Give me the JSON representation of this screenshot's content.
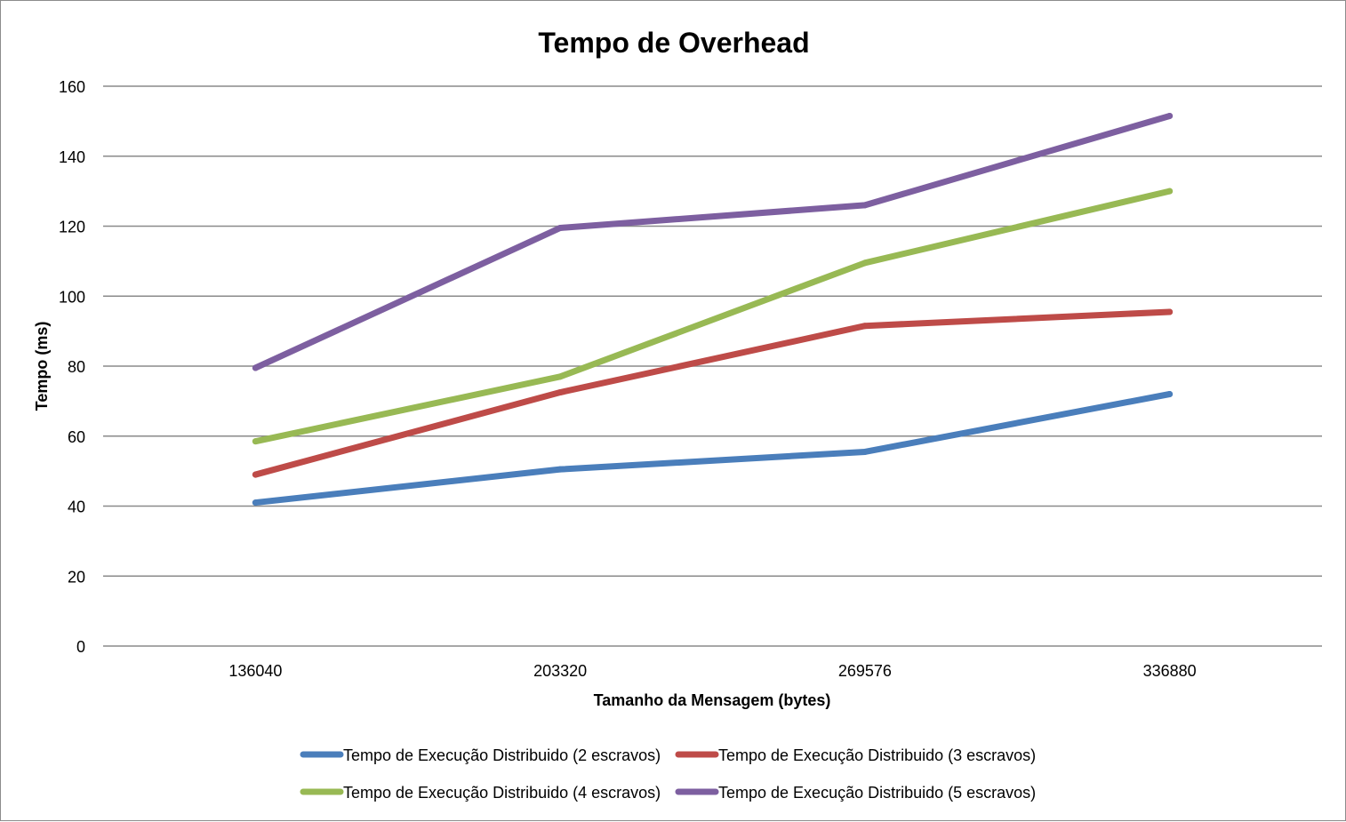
{
  "chart_data": {
    "type": "line",
    "title": "Tempo de Overhead",
    "xlabel": "Tamanho da Mensagem (bytes)",
    "ylabel": "Tempo (ms)",
    "categories": [
      "136040",
      "203320",
      "269576",
      "336880"
    ],
    "ylim": [
      0,
      160
    ],
    "yticks": [
      0,
      20,
      40,
      60,
      80,
      100,
      120,
      140,
      160
    ],
    "grid": true,
    "legend_position": "bottom",
    "series": [
      {
        "name": "Tempo de Execução Distribuido (2 escravos)",
        "color": "#4a7ebb",
        "values": [
          41,
          50.5,
          55.5,
          72
        ]
      },
      {
        "name": "Tempo de Execução Distribuido (3 escravos)",
        "color": "#be4b48",
        "values": [
          49,
          72.5,
          91.5,
          95.5
        ]
      },
      {
        "name": "Tempo de Execução Distribuido (4 escravos)",
        "color": "#98b954",
        "values": [
          58.5,
          77,
          109.5,
          130
        ]
      },
      {
        "name": "Tempo de Execução Distribuido (5 escravos)",
        "color": "#7d5fa0",
        "values": [
          79.5,
          119.5,
          126,
          151.5
        ]
      }
    ]
  }
}
